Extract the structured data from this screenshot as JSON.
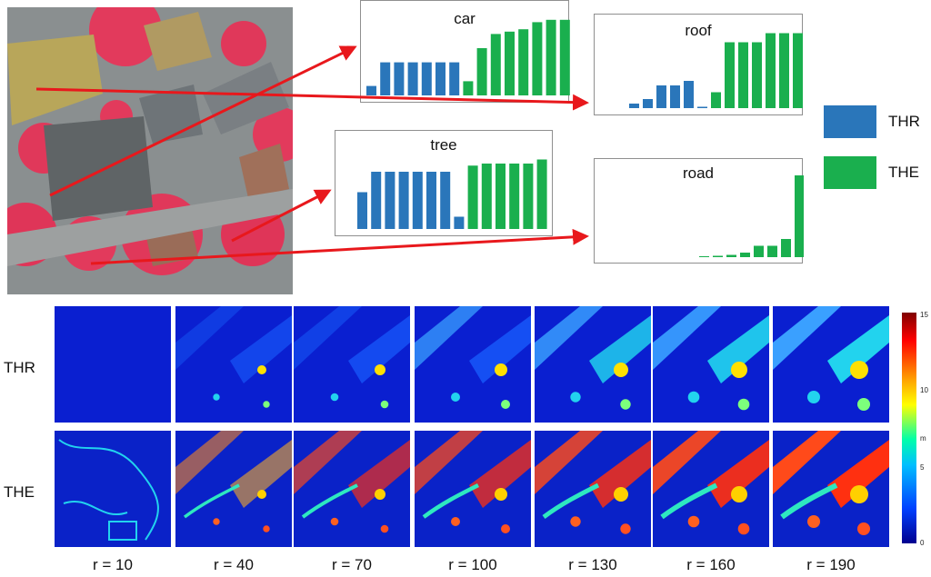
{
  "charts": [
    {
      "id": "car",
      "title": "car",
      "values": [
        2,
        7,
        7,
        7,
        7,
        7,
        7,
        3,
        10,
        13,
        13.5,
        14,
        15.5,
        16,
        16
      ]
    },
    {
      "id": "roof",
      "title": "roof",
      "values": [
        1,
        2,
        5,
        5,
        6,
        0.3,
        3.5,
        14.5,
        14.5,
        14.5,
        16.5,
        16.5,
        16.5
      ]
    },
    {
      "id": "tree",
      "title": "tree",
      "values": [
        9,
        14,
        14,
        14,
        14,
        14,
        14,
        3,
        15.5,
        16,
        16,
        16,
        16,
        17
      ]
    },
    {
      "id": "road",
      "title": "road",
      "values": [
        0.2,
        0.3,
        0.5,
        1,
        2.5,
        2.5,
        4,
        18
      ]
    }
  ],
  "legend": {
    "thr": {
      "label": "THR",
      "color": "#2a76ba"
    },
    "the": {
      "label": "THE",
      "color": "#1aaf4e"
    }
  },
  "rows": {
    "thr": "THR",
    "the": "THE"
  },
  "radii": [
    "r = 10",
    "r = 40",
    "r = 70",
    "r = 100",
    "r = 130",
    "r = 160",
    "r = 190"
  ],
  "colorbar": {
    "ticks": [
      "15",
      "10",
      "5",
      "0"
    ],
    "unit": "m"
  },
  "arrow_color": "#e8181c"
}
